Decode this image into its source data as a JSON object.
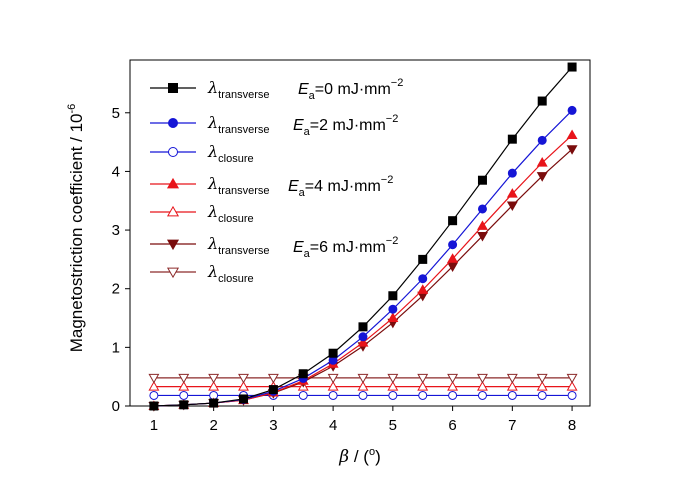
{
  "chart_data": {
    "type": "line",
    "xlabel": "β / (°)",
    "xlabel_symbol": "β",
    "xlabel_rest": " / (",
    "xlabel_degree": "o",
    "xlabel_close": ")",
    "ylabel": "Magnetostriction coefficient / 10",
    "ylabel_exponent": "-6",
    "xlim": [
      0.6,
      8.3
    ],
    "ylim": [
      0,
      5.9
    ],
    "xticks": [
      1,
      2,
      3,
      4,
      5,
      6,
      7,
      8
    ],
    "yticks": [
      0,
      1,
      2,
      3,
      4,
      5
    ],
    "grid": false,
    "legend_position": "top-left",
    "x": [
      1,
      1.5,
      2,
      2.5,
      3,
      3.5,
      4,
      4.5,
      5,
      5.5,
      6,
      6.5,
      7,
      7.5,
      8
    ],
    "series": [
      {
        "name": "λtransverse",
        "symbol": "λ",
        "subscript": "transverse",
        "color": "#000000",
        "marker": "square",
        "filled": true,
        "values": [
          0.0,
          0.02,
          0.05,
          0.12,
          0.28,
          0.55,
          0.9,
          1.35,
          1.88,
          2.5,
          3.16,
          3.85,
          4.55,
          5.2,
          5.78
        ]
      },
      {
        "name": "λtransverse",
        "symbol": "λ",
        "subscript": "transverse",
        "color": "#1515d6",
        "marker": "circle",
        "filled": true,
        "values": [
          0.0,
          0.02,
          0.05,
          0.11,
          0.25,
          0.47,
          0.78,
          1.18,
          1.65,
          2.17,
          2.75,
          3.36,
          3.97,
          4.53,
          5.04
        ]
      },
      {
        "name": "λclosure",
        "symbol": "λ",
        "subscript": "closure",
        "color": "#1515d6",
        "marker": "circle",
        "filled": false,
        "values": [
          0.18,
          0.18,
          0.18,
          0.18,
          0.18,
          0.18,
          0.18,
          0.18,
          0.18,
          0.18,
          0.18,
          0.18,
          0.18,
          0.18,
          0.18
        ]
      },
      {
        "name": "λtransverse",
        "symbol": "λ",
        "subscript": "transverse",
        "color": "#e8141a",
        "marker": "triangle-up",
        "filled": true,
        "values": [
          0.0,
          0.02,
          0.05,
          0.1,
          0.23,
          0.43,
          0.72,
          1.08,
          1.5,
          1.98,
          2.51,
          3.07,
          3.62,
          4.15,
          4.62
        ]
      },
      {
        "name": "λclosure",
        "symbol": "λ",
        "subscript": "closure",
        "color": "#e8141a",
        "marker": "triangle-up",
        "filled": false,
        "values": [
          0.33,
          0.33,
          0.33,
          0.33,
          0.33,
          0.33,
          0.33,
          0.33,
          0.33,
          0.33,
          0.33,
          0.33,
          0.33,
          0.33,
          0.33
        ]
      },
      {
        "name": "λtransverse",
        "symbol": "λ",
        "subscript": "transverse",
        "color": "#7a0c0c",
        "marker": "triangle-down",
        "filled": true,
        "values": [
          0.0,
          0.02,
          0.05,
          0.1,
          0.22,
          0.41,
          0.68,
          1.02,
          1.42,
          1.88,
          2.38,
          2.9,
          3.42,
          3.92,
          4.38
        ]
      },
      {
        "name": "λclosure",
        "symbol": "λ",
        "subscript": "closure",
        "color": "#8c2a2a",
        "marker": "triangle-down",
        "filled": false,
        "values": [
          0.48,
          0.48,
          0.48,
          0.48,
          0.48,
          0.48,
          0.48,
          0.48,
          0.48,
          0.48,
          0.48,
          0.48,
          0.48,
          0.48,
          0.48
        ]
      }
    ],
    "annotations": [
      {
        "prefix": "E",
        "subscript": "a",
        "text": "=0 mJ·mm",
        "exponent": "−2"
      },
      {
        "prefix": "E",
        "subscript": "a",
        "text": "=2 mJ·mm",
        "exponent": "−2"
      },
      {
        "prefix": "E",
        "subscript": "a",
        "text": "=4 mJ·mm",
        "exponent": "−2"
      },
      {
        "prefix": "E",
        "subscript": "a",
        "text": "=6 mJ·mm",
        "exponent": "−2"
      }
    ]
  }
}
